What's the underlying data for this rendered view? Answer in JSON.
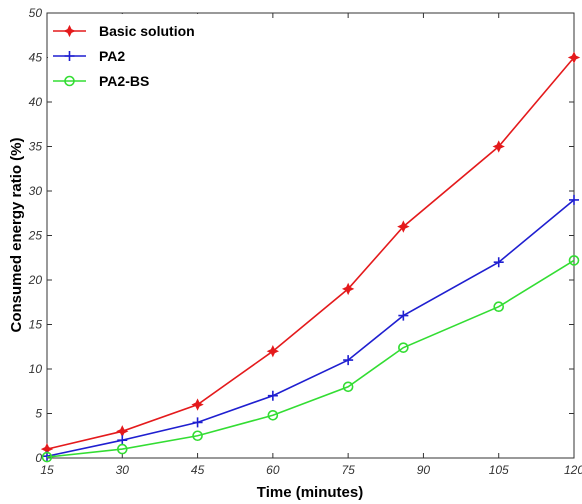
{
  "chart_data": {
    "type": "line",
    "title": "",
    "xlabel": "Time (minutes)",
    "ylabel": "Consumed energy ratio (%)",
    "xlim": [
      15,
      120
    ],
    "ylim": [
      0,
      50
    ],
    "xticks": [
      15,
      30,
      45,
      60,
      75,
      90,
      105,
      120
    ],
    "yticks": [
      0,
      5,
      10,
      15,
      20,
      25,
      30,
      35,
      40,
      45,
      50
    ],
    "grid": false,
    "legend_position": "top-left",
    "series": [
      {
        "name": "Basic solution",
        "color": "#e41a1c",
        "marker": "diamond-star",
        "x": [
          15,
          30,
          45,
          60,
          75,
          86,
          105,
          120
        ],
        "y": [
          1,
          3,
          6,
          12,
          19,
          26,
          35,
          45
        ]
      },
      {
        "name": "PA2",
        "color": "#1f1fd0",
        "marker": "plus",
        "x": [
          15,
          30,
          45,
          60,
          75,
          86,
          105,
          120
        ],
        "y": [
          0.2,
          2,
          4,
          7,
          11,
          16,
          22,
          29
        ]
      },
      {
        "name": "PA2-BS",
        "color": "#33dd33",
        "marker": "circle",
        "x": [
          15,
          30,
          45,
          60,
          75,
          86,
          105,
          120
        ],
        "y": [
          0.1,
          1,
          2.5,
          4.8,
          8,
          12.4,
          17,
          22.2
        ]
      }
    ]
  }
}
